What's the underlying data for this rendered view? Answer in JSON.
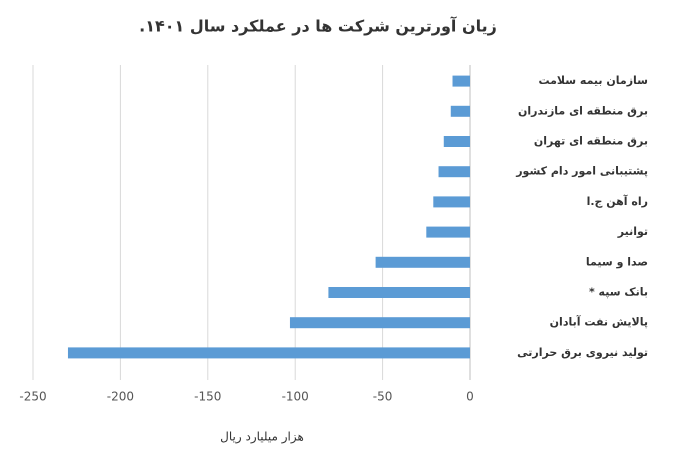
{
  "chart_data": {
    "type": "bar",
    "orientation": "horizontal",
    "title": "زیان آورترین شرکت ها در عملکرد سال ۱۴۰۱.",
    "x_label": "هزار میلیارد ریال",
    "categories": [
      "سازمان بیمه سلامت",
      "برق منطقه ای مازندران",
      "برق منطقه ای تهران",
      "پشتیبانی امور دام کشور",
      "راه آهن ج.ا",
      "توانیر",
      "صدا و سیما",
      "بانک سپه *",
      "پالایش نفت آبادان",
      "تولید نیروی برق حرارتی"
    ],
    "values": [
      -10,
      -11,
      -15,
      -18,
      -21,
      -25,
      -54,
      -81,
      -103,
      -230
    ],
    "color": "#5b9bd5",
    "xlim": [
      -250,
      0
    ],
    "xticks": [
      -250,
      -200,
      -150,
      -100,
      -50,
      0
    ],
    "grid": true
  }
}
